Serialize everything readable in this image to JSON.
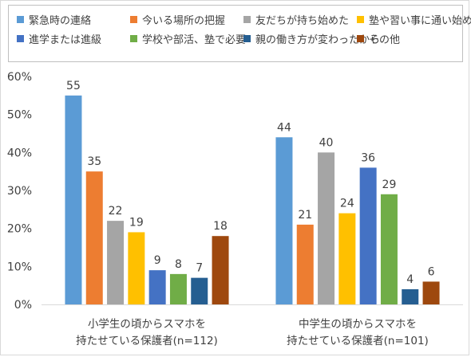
{
  "chart_data": {
    "type": "bar",
    "title": "",
    "xlabel": "",
    "ylabel": "",
    "ylim": [
      0,
      60
    ],
    "yticks": [
      "0%",
      "10%",
      "20%",
      "30%",
      "40%",
      "50%",
      "60%"
    ],
    "grid": false,
    "legend_position": "top",
    "categories": [
      [
        "小学生の頃からスマホを",
        "持たせている保護者(n=112)"
      ],
      [
        "中学生の頃からスマホを",
        "持たせている保護者(n=101)"
      ]
    ],
    "series": [
      {
        "name": "緊急時の連絡",
        "color": "#5b9bd5",
        "values": [
          55,
          44
        ]
      },
      {
        "name": "今いる場所の把握",
        "color": "#ed7d31",
        "values": [
          35,
          21
        ]
      },
      {
        "name": "友だちが持ち始めた",
        "color": "#a5a5a5",
        "values": [
          22,
          40
        ]
      },
      {
        "name": "塾や習い事に通い始めた",
        "color": "#ffc000",
        "values": [
          19,
          24
        ]
      },
      {
        "name": "進学または進級",
        "color": "#4472c4",
        "values": [
          9,
          36
        ]
      },
      {
        "name": "学校や部活、塾で必要",
        "color": "#70ad47",
        "values": [
          8,
          29
        ]
      },
      {
        "name": "親の働き方が変わったから",
        "color": "#255e91",
        "values": [
          7,
          4
        ]
      },
      {
        "name": "その他",
        "color": "#9e480e",
        "values": [
          18,
          6
        ]
      }
    ]
  }
}
